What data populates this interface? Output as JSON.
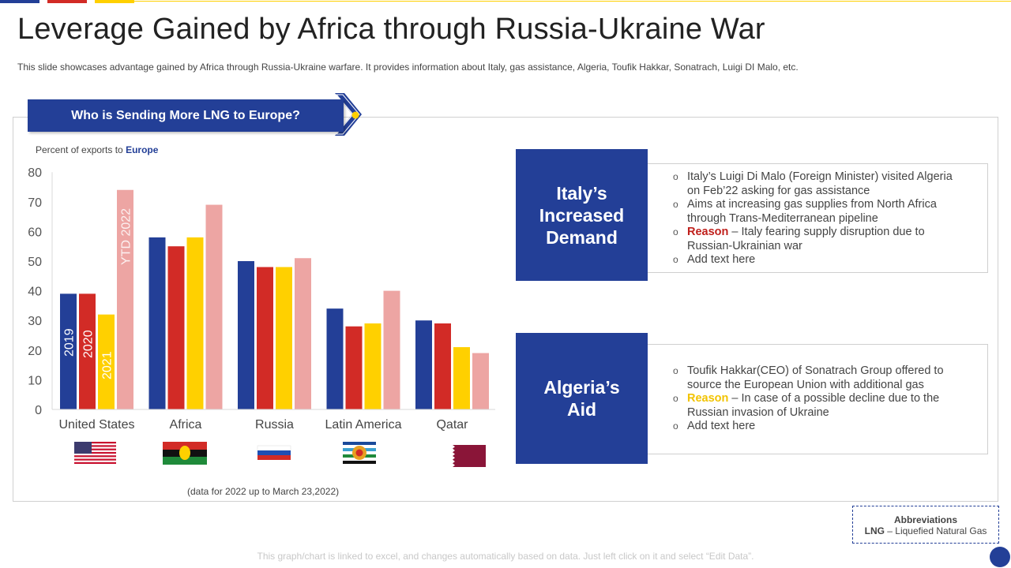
{
  "title": "Leverage Gained by Africa through Russia-Ukraine War",
  "subtitle": "This slide showcases advantage  gained by Africa through Russia-Ukraine warfare.  It provides  information  about Italy, gas assistance, Algeria, Toufik Hakkar, Sonatrach, Luigi DI Malo, etc.",
  "banner": "Who is Sending More LNG to Europe?",
  "chart_data": {
    "type": "bar",
    "title": "",
    "subtitle_prefix": "Percent of exports to ",
    "subtitle_emph": "Europe",
    "categories": [
      "United States",
      "Africa",
      "Russia",
      "Latin America",
      "Qatar"
    ],
    "series": [
      {
        "name": "2019",
        "values": [
          39,
          58,
          50,
          34,
          30
        ],
        "color": "#233f97"
      },
      {
        "name": "2020",
        "values": [
          39,
          55,
          48,
          28,
          29
        ],
        "color": "#d22b26"
      },
      {
        "name": "2021",
        "values": [
          32,
          58,
          48,
          29,
          21
        ],
        "color": "#ffd000"
      },
      {
        "name": "YTD 2022",
        "values": [
          74,
          69,
          51,
          40,
          19
        ],
        "color": "#eda5a3"
      }
    ],
    "yticks": [
      0,
      10,
      20,
      30,
      40,
      50,
      60,
      70,
      80
    ],
    "ylim": [
      0,
      80
    ],
    "grid": false,
    "legend": "inside-bars",
    "note": "(data for 2022 up to March 23,2022)"
  },
  "italy": {
    "heading": [
      "Italy’s",
      "Increased",
      "Demand"
    ],
    "points": [
      "Italy’s Luigi Di Malo (Foreign Minister) visited Algeria on Feb’22 asking for gas assistance",
      "Aims at increasing gas supplies from North Africa through Trans-Mediterranean pipeline"
    ],
    "reason_label": "Reason",
    "reason_text": " – Italy fearing supply disruption due to Russian-Ukrainian war",
    "last": "Add text here"
  },
  "algeria": {
    "heading": [
      "Algeria’s",
      "Aid"
    ],
    "points": [
      "Toufik Hakkar(CEO) of Sonatrach Group offered to source the European Union with additional gas"
    ],
    "reason_label": "Reason",
    "reason_text": " – In case of a possible decline due to the Russian invasion of Ukraine",
    "last": "Add text here"
  },
  "abbreviations": {
    "heading": "Abbreviations",
    "term": "LNG",
    "definition": "  – Liquefied Natural Gas"
  },
  "footer": "This graph/chart is linked to excel,  and changes automatically based on data. Just left click on it and select “Edit Data”.",
  "colors": {
    "navy": "#233f97",
    "red": "#d22b26",
    "yellow": "#ffd000",
    "pink": "#eda5a3"
  }
}
